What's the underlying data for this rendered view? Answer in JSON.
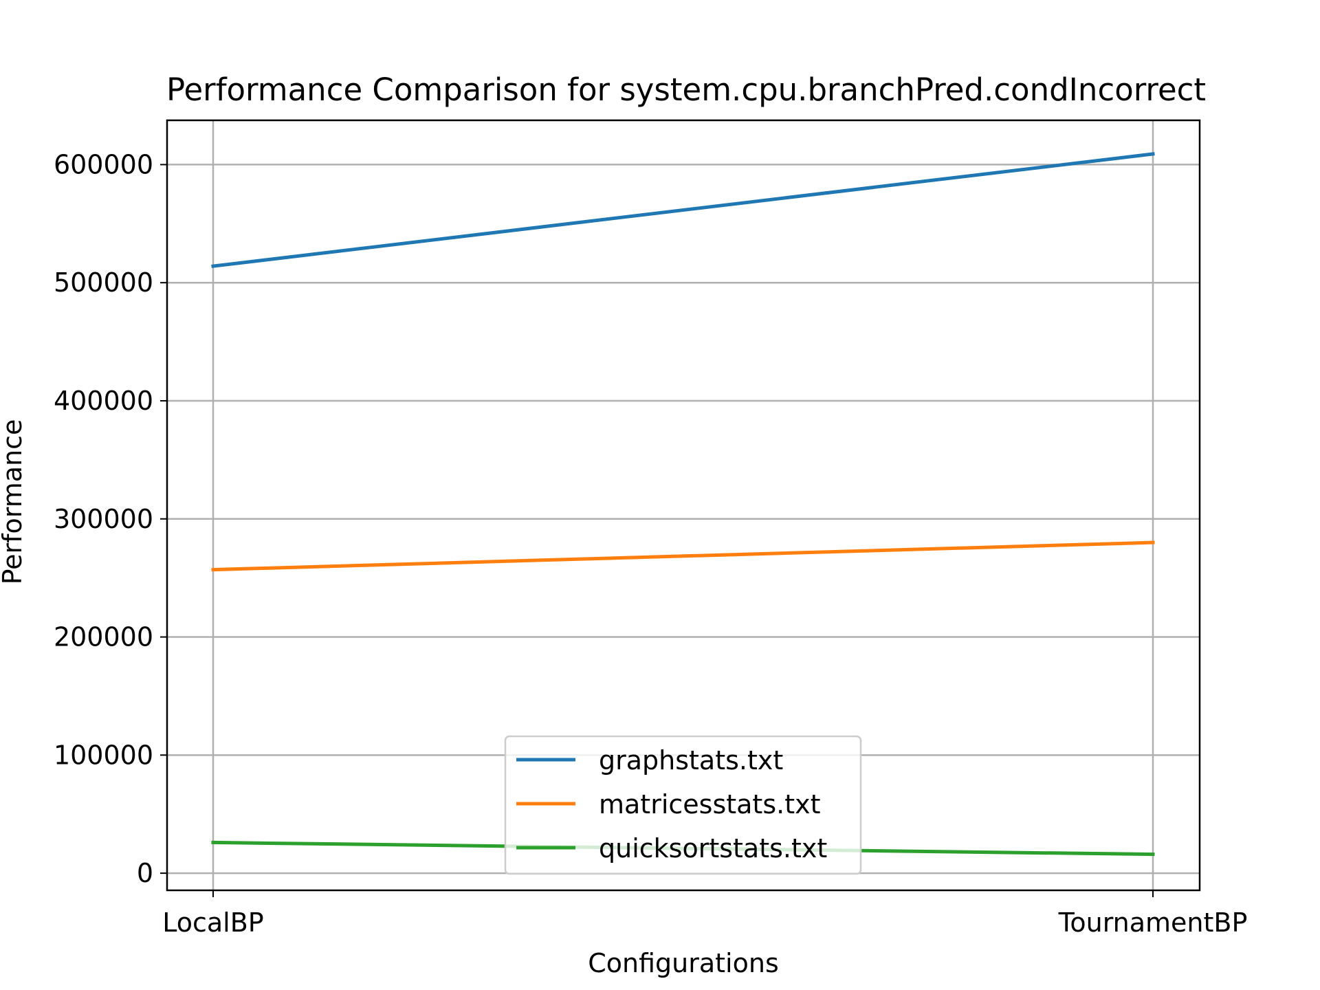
{
  "chart_data": {
    "type": "line",
    "title": "Performance Comparison for system.cpu.branchPred.condIncorrect",
    "xlabel": "Configurations",
    "ylabel": "Performance",
    "categories": [
      "LocalBP",
      "TournamentBP"
    ],
    "ylim": [
      -14500,
      637500
    ],
    "yticks": [
      0,
      100000,
      200000,
      300000,
      400000,
      500000,
      600000
    ],
    "ytick_labels": [
      "0",
      "100000",
      "200000",
      "300000",
      "400000",
      "500000",
      "600000"
    ],
    "grid": true,
    "legend_position": "lower center",
    "series": [
      {
        "name": "graphstats.txt",
        "color": "#1f77b4",
        "values": [
          514000,
          609000
        ]
      },
      {
        "name": "matricesstats.txt",
        "color": "#ff7f0e",
        "values": [
          257000,
          280000
        ]
      },
      {
        "name": "quicksortstats.txt",
        "color": "#2ca02c",
        "values": [
          26000,
          16000
        ]
      }
    ]
  }
}
